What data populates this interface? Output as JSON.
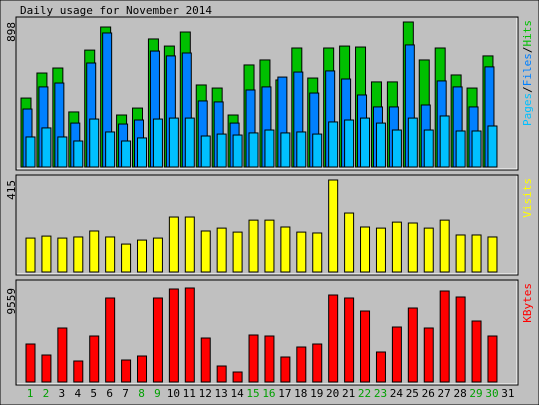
{
  "title": "Daily usage for November 2014",
  "categories": [
    1,
    2,
    3,
    4,
    5,
    6,
    7,
    8,
    9,
    10,
    11,
    12,
    13,
    14,
    15,
    16,
    17,
    18,
    19,
    20,
    21,
    22,
    23,
    24,
    25,
    26,
    27,
    28,
    29,
    30,
    31
  ],
  "category_colors": [
    "#00a000",
    "#00a000",
    "#000000",
    "#000000",
    "#000000",
    "#000000",
    "#000000",
    "#00a000",
    "#00a000",
    "#000000",
    "#000000",
    "#000000",
    "#000000",
    "#000000",
    "#00a000",
    "#00a000",
    "#000000",
    "#000000",
    "#000000",
    "#000000",
    "#000000",
    "#00a000",
    "#00a000",
    "#000000",
    "#000000",
    "#000000",
    "#000000",
    "#000000",
    "#00a000",
    "#00a000",
    "#000000"
  ],
  "legend_separator": "/",
  "chart_data": [
    {
      "type": "bar",
      "ylim": [
        0,
        898
      ],
      "yticks": [
        898
      ],
      "series": [
        {
          "name": "Pages",
          "color": "#00c0ff",
          "values": [
            186,
            242,
            186,
            161,
            297,
            217,
            161,
            180,
            297,
            303,
            303,
            192,
            204,
            198,
            211,
            229,
            211,
            217,
            204,
            279,
            291,
            303,
            272,
            229,
            303,
            229,
            316,
            223,
            223,
            254,
            null
          ]
        },
        {
          "name": "Files",
          "color": "#0080ff",
          "values": [
            359,
            496,
            520,
            272,
            644,
            830,
            266,
            291,
            718,
            688,
            706,
            409,
            403,
            272,
            477,
            496,
            557,
            588,
            458,
            595,
            545,
            446,
            372,
            372,
            756,
            384,
            533,
            496,
            372,
            620,
            null
          ]
        },
        {
          "name": "Hits",
          "color": "#00c000",
          "values": [
            427,
            582,
            613,
            341,
            724,
            867,
            322,
            365,
            793,
            749,
            836,
            508,
            489,
            322,
            632,
            663,
            539,
            737,
            551,
            737,
            749,
            743,
            527,
            527,
            898,
            663,
            737,
            570,
            489,
            688,
            null
          ]
        }
      ]
    },
    {
      "type": "bar",
      "ylim": [
        0,
        415
      ],
      "yticks": [
        415
      ],
      "series": [
        {
          "name": "Visits",
          "color": "#ffff00",
          "values": [
            153,
            162,
            153,
            158,
            185,
            158,
            126,
            144,
            153,
            248,
            248,
            185,
            198,
            180,
            234,
            234,
            203,
            180,
            176,
            415,
            266,
            203,
            198,
            225,
            221,
            198,
            234,
            167,
            167,
            158,
            null
          ]
        }
      ]
    },
    {
      "type": "bar",
      "ylim": [
        0,
        9559
      ],
      "yticks": [
        9559
      ],
      "series": [
        {
          "name": "KBytes",
          "color": "#ff0000",
          "values": [
            3864,
            2746,
            5491,
            2136,
            4678,
            8542,
            2237,
            2644,
            8542,
            9457,
            9559,
            4474,
            1627,
            1017,
            4780,
            4678,
            2542,
            3559,
            3864,
            8847,
            8542,
            7220,
            3051,
            5593,
            7525,
            5491,
            9254,
            8644,
            6203,
            4678,
            null
          ]
        }
      ]
    }
  ]
}
